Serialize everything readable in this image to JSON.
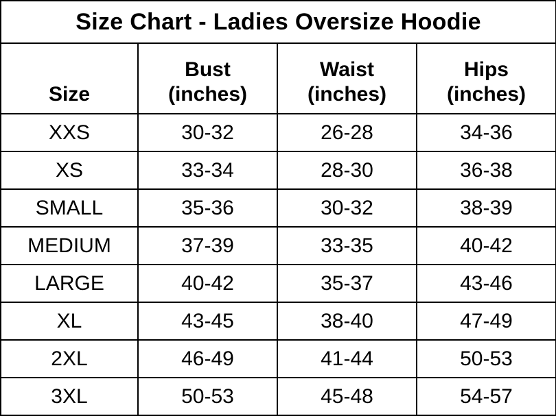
{
  "title": "Size Chart - Ladies Oversize Hoodie",
  "table": {
    "headers": [
      {
        "label": "Size",
        "sub": ""
      },
      {
        "label": "Bust",
        "sub": "(inches)"
      },
      {
        "label": "Waist",
        "sub": "(inches)"
      },
      {
        "label": "Hips",
        "sub": "(inches)"
      }
    ]
  },
  "chart_data": {
    "type": "table",
    "title": "Size Chart - Ladies Oversize Hoodie",
    "columns": [
      "Size",
      "Bust (inches)",
      "Waist (inches)",
      "Hips (inches)"
    ],
    "rows": [
      [
        "XXS",
        "30-32",
        "26-28",
        "34-36"
      ],
      [
        "XS",
        "33-34",
        "28-30",
        "36-38"
      ],
      [
        "SMALL",
        "35-36",
        "30-32",
        "38-39"
      ],
      [
        "MEDIUM",
        "37-39",
        "33-35",
        "40-42"
      ],
      [
        "LARGE",
        "40-42",
        "35-37",
        "43-46"
      ],
      [
        "XL",
        "43-45",
        "38-40",
        "47-49"
      ],
      [
        "2XL",
        "46-49",
        "41-44",
        "50-53"
      ],
      [
        "3XL",
        "50-53",
        "45-48",
        "54-57"
      ]
    ],
    "layout": {
      "grid": true,
      "border_color": "#000000",
      "background_color": "#ffffff",
      "text_color": "#000000"
    }
  }
}
